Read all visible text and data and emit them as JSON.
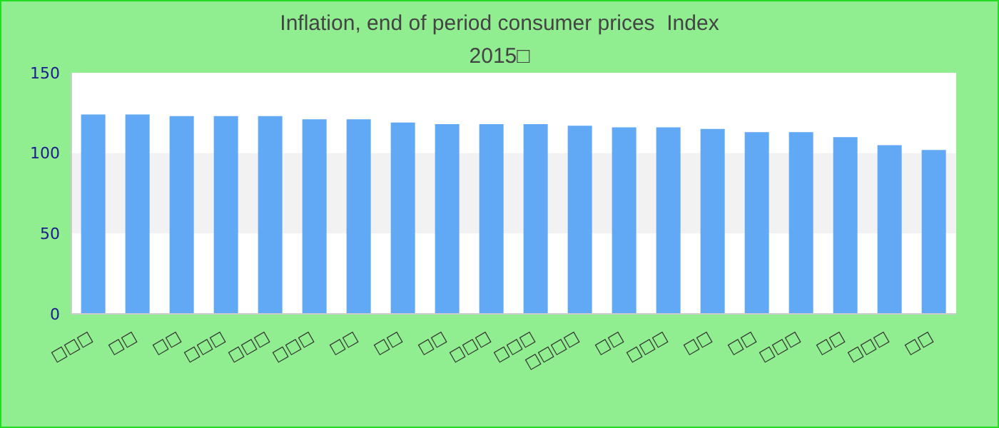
{
  "chart_data": {
    "type": "bar",
    "title": "Inflation, end of period consumer prices  Index 2015□",
    "categories": [
      "□□□",
      "□□",
      "□□",
      "□□□",
      "□□□",
      "□□□",
      "□□",
      "□□",
      "□□",
      "□□□",
      "□□□",
      "□□□□",
      "□□",
      "□□□",
      "□□",
      "□□",
      "□□□",
      "□□",
      "□□□",
      "□□"
    ],
    "values": [
      124,
      124,
      123,
      123,
      123,
      121,
      121,
      119,
      118,
      118,
      118,
      117,
      116,
      116,
      115,
      113,
      113,
      110,
      105,
      102
    ],
    "color": "#61a8f5",
    "ylim": [
      0,
      150
    ],
    "yticks": [
      0,
      50,
      100,
      150
    ],
    "bands": [
      {
        "axis": "y",
        "from": 50,
        "to": 100,
        "color": "#f2f2f2"
      }
    ]
  }
}
